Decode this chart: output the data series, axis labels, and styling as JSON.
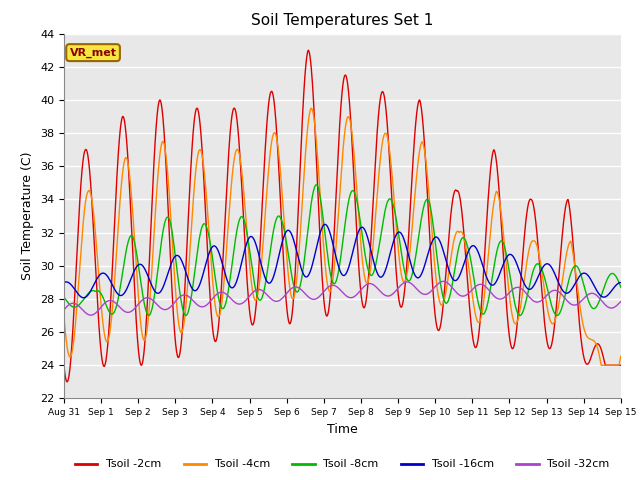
{
  "title": "Soil Temperatures Set 1",
  "xlabel": "Time",
  "ylabel": "Soil Temperature (C)",
  "ylim": [
    22,
    44
  ],
  "yticks": [
    22,
    24,
    26,
    28,
    30,
    32,
    34,
    36,
    38,
    40,
    42,
    44
  ],
  "figure_bg": "#ffffff",
  "plot_bg": "#e8e8e8",
  "grid_color": "#ffffff",
  "series_colors": [
    "#dd0000",
    "#ff8800",
    "#00bb00",
    "#0000cc",
    "#aa44cc"
  ],
  "series_labels": [
    "Tsoil -2cm",
    "Tsoil -4cm",
    "Tsoil -8cm",
    "Tsoil -16cm",
    "Tsoil -32cm"
  ],
  "annotation_text": "VR_met",
  "xtick_labels": [
    "Aug 31",
    "Sep 1",
    "Sep 2",
    "Sep 3",
    "Sep 4",
    "Sep 5",
    "Sep 6",
    "Sep 7",
    "Sep 8",
    "Sep 9",
    "Sep 10",
    "Sep 11",
    "Sep 12",
    "Sep 13",
    "Sep 14",
    "Sep 15"
  ],
  "n_days": 15,
  "points_per_day": 144
}
